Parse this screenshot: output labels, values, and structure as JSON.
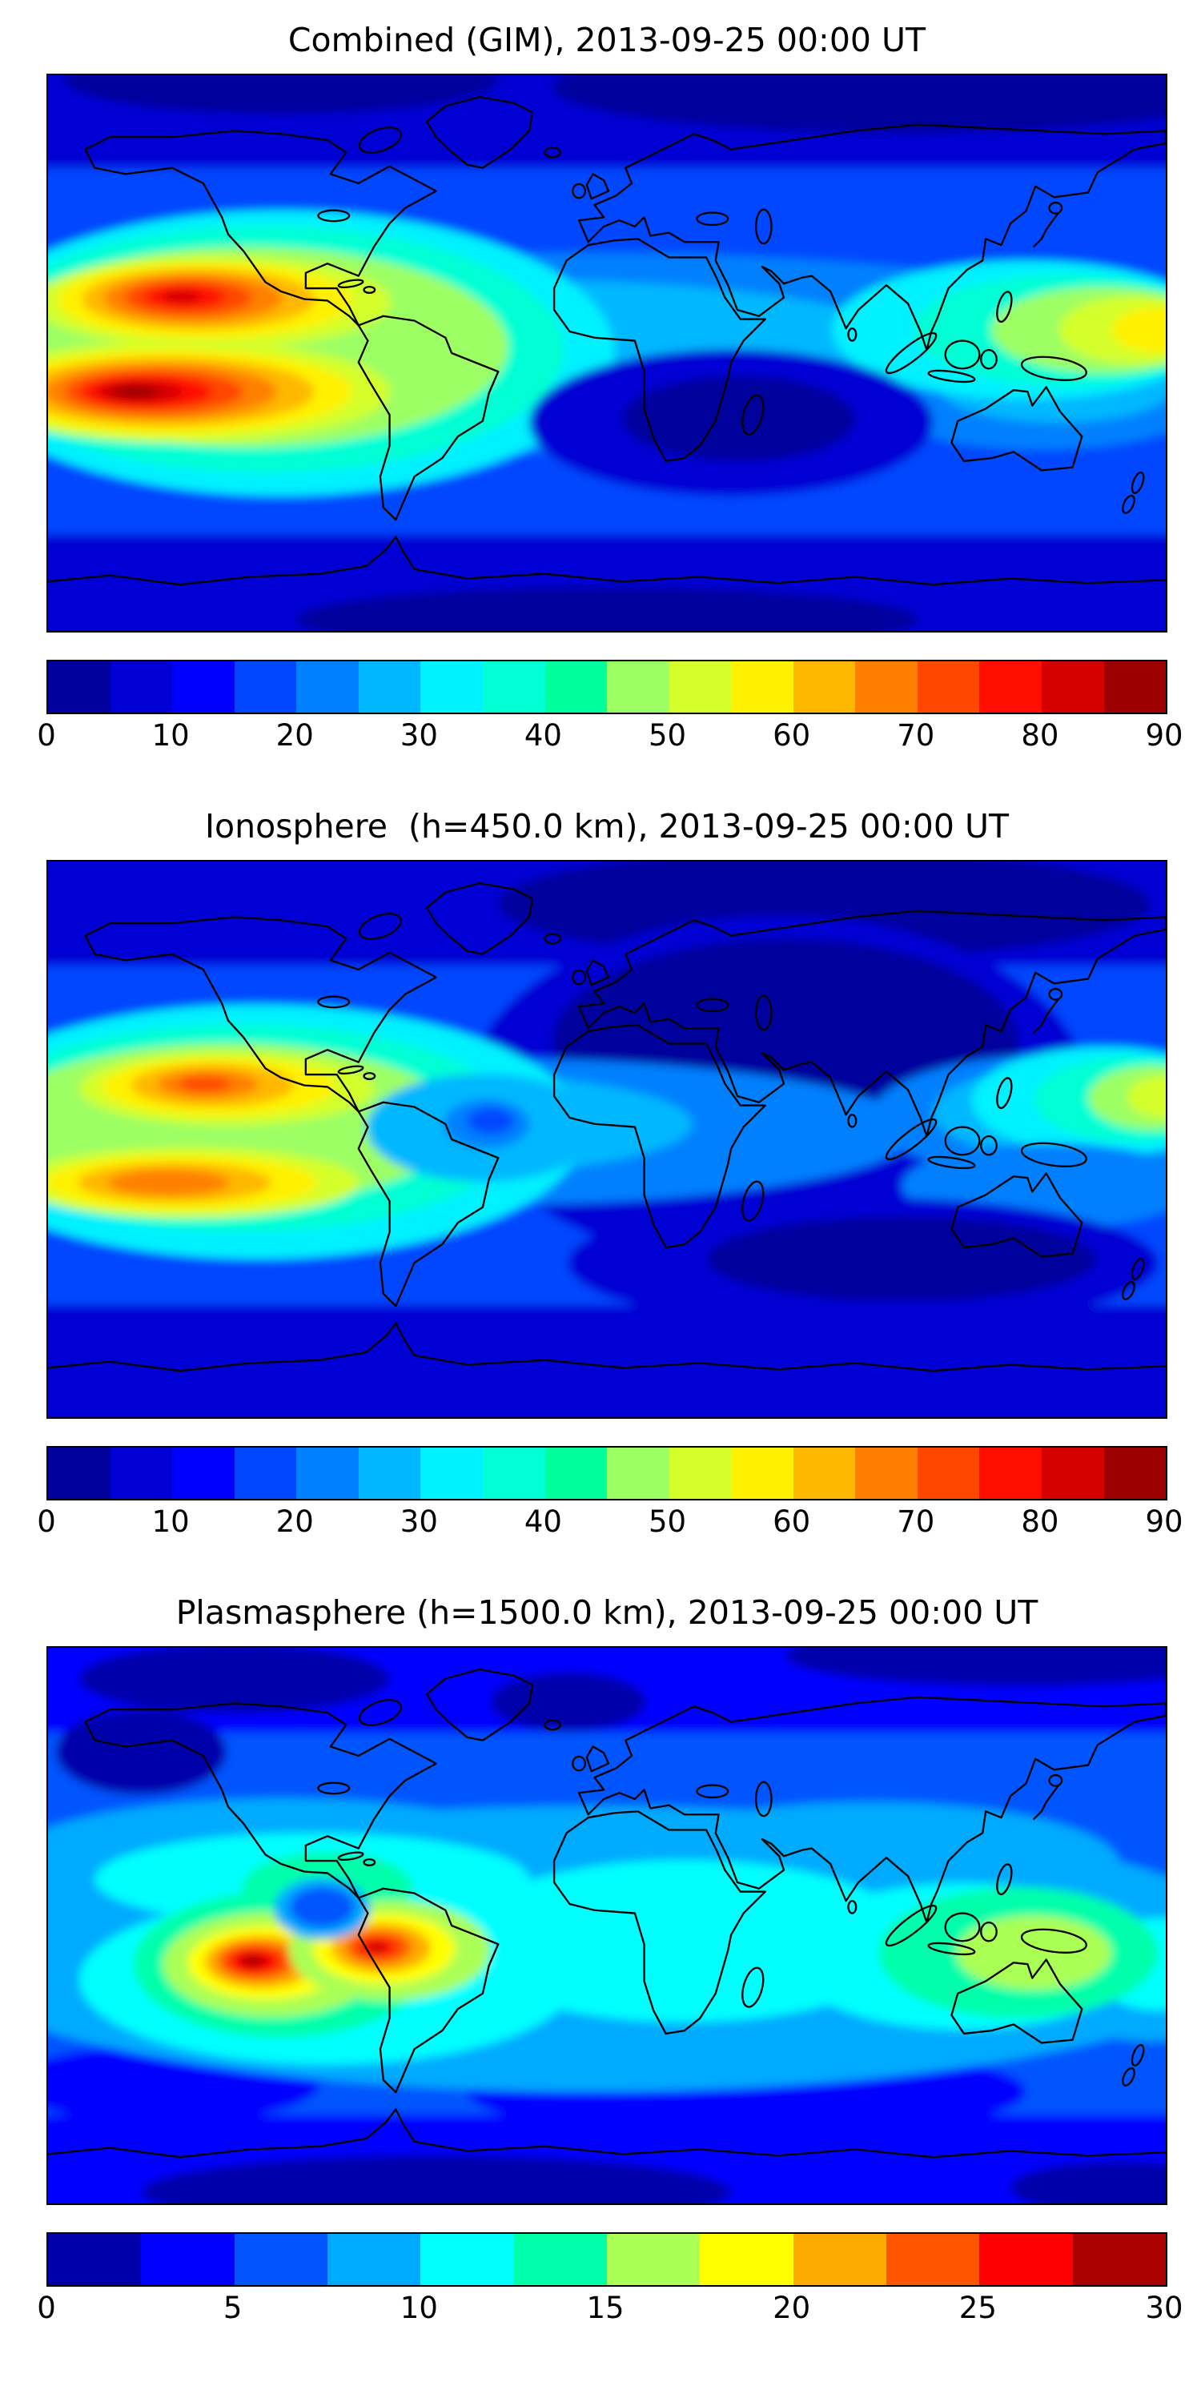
{
  "figure": {
    "background_color": "#ffffff",
    "text_color": "#000000",
    "colormap_name": "jet"
  },
  "panels": [
    {
      "id": "combined",
      "title": "Combined (GIM), 2013-09-25 00:00 UT"
    },
    {
      "id": "ionosphere",
      "title": "Ionosphere  (h=450.0 km), 2013-09-25 00:00 UT"
    },
    {
      "id": "plasmasphere",
      "title": "Plasmasphere (h=1500.0 km), 2013-09-25 00:00 UT"
    }
  ],
  "colorbars": {
    "combined": {
      "min": 0,
      "max": 90,
      "ticks": [
        "0",
        "10",
        "20",
        "30",
        "40",
        "50",
        "60",
        "70",
        "80",
        "90"
      ],
      "colors": [
        "#00009C",
        "#0000D4",
        "#0000FF",
        "#0047FF",
        "#0080FF",
        "#00B8FF",
        "#00F1FF",
        "#00FFD4",
        "#00FF9C",
        "#9CFF63",
        "#D4FF2B",
        "#FFF100",
        "#FFB800",
        "#FF8000",
        "#FF4700",
        "#FF0E00",
        "#D40000",
        "#9C0000"
      ]
    },
    "ionosphere": {
      "min": 0,
      "max": 90,
      "ticks": [
        "0",
        "10",
        "20",
        "30",
        "40",
        "50",
        "60",
        "70",
        "80",
        "90"
      ],
      "colors": [
        "#00009C",
        "#0000D4",
        "#0000FF",
        "#0047FF",
        "#0080FF",
        "#00B8FF",
        "#00F1FF",
        "#00FFD4",
        "#00FF9C",
        "#9CFF63",
        "#D4FF2B",
        "#FFF100",
        "#FFB800",
        "#FF8000",
        "#FF4700",
        "#FF0E00",
        "#D40000",
        "#9C0000"
      ]
    },
    "plasmasphere": {
      "min": 0,
      "max": 30,
      "ticks": [
        "0",
        "5",
        "10",
        "15",
        "20",
        "25",
        "30"
      ],
      "colors": [
        "#0000AA",
        "#0000FF",
        "#0055FF",
        "#00AAFF",
        "#00FFFF",
        "#00FFAA",
        "#AAFF55",
        "#FFFF00",
        "#FFAA00",
        "#FF5500",
        "#FF0000",
        "#AA0000"
      ]
    }
  },
  "chart_data": [
    {
      "type": "heatmap",
      "title": "Combined (GIM), 2013-09-25 00:00 UT",
      "projection": "equirectangular world map, lon -180..180, lat -90..90",
      "colorbar": {
        "range": [
          0,
          90
        ],
        "ticks": [
          0,
          10,
          20,
          30,
          40,
          50,
          60,
          70,
          80,
          90
        ],
        "levels": 18,
        "colormap": "jet",
        "position": "bottom"
      },
      "features": [
        {
          "label": "equatorial-anomaly south crest, central Pacific",
          "lon": -150,
          "lat": -12,
          "peak_value": 90
        },
        {
          "label": "equatorial-anomaly north crest, central Pacific",
          "lon": -137,
          "lat": 16,
          "peak_value": 82
        },
        {
          "label": "enhanced band, SE Asia / western Pacific",
          "lon": 168,
          "lat": 8,
          "peak_value": 62
        },
        {
          "label": "cyan equatorial band across Atlantic/Africa",
          "value_range": [
            30,
            40
          ]
        },
        {
          "label": "minimum, South Atlantic / Indian Ocean",
          "lon": 40,
          "lat": -22,
          "value": 5
        },
        {
          "label": "high-latitude background",
          "value_range": [
            5,
            20
          ]
        }
      ]
    },
    {
      "type": "heatmap",
      "title": "Ionosphere  (h=450.0 km), 2013-09-25 00:00 UT",
      "projection": "equirectangular world map, lon -180..180, lat -90..90",
      "colorbar": {
        "range": [
          0,
          90
        ],
        "ticks": [
          0,
          10,
          20,
          30,
          40,
          50,
          60,
          70,
          80,
          90
        ],
        "levels": 18,
        "colormap": "jet",
        "position": "bottom"
      },
      "features": [
        {
          "label": "equatorial-anomaly north crest, central Pacific",
          "lon": -122,
          "lat": 17,
          "peak_value": 75
        },
        {
          "label": "equatorial-anomaly south crest, central Pacific",
          "lon": -135,
          "lat": -14,
          "peak_value": 70
        },
        {
          "label": "enhancement, far western Pacific (map right edge)",
          "lon": 175,
          "lat": 13,
          "peak_value": 55
        },
        {
          "label": "local dip over eastern South America",
          "lon": -39,
          "lat": 6,
          "value": 20
        },
        {
          "label": "broad minimum over Europe/Africa/central Asia",
          "value": 5
        },
        {
          "label": "minimum, southern Indian Ocean",
          "lon": 95,
          "lat": -40,
          "value": 5
        }
      ]
    },
    {
      "type": "heatmap",
      "title": "Plasmasphere (h=1500.0 km), 2013-09-25 00:00 UT",
      "projection": "equirectangular world map, lon -180..180, lat -90..90",
      "colorbar": {
        "range": [
          0,
          30
        ],
        "ticks": [
          0,
          5,
          10,
          15,
          20,
          25,
          30
        ],
        "levels": 12,
        "colormap": "jet",
        "position": "bottom"
      },
      "features": [
        {
          "label": "peak, south-central Pacific",
          "lon": -110,
          "lat": -12,
          "peak_value": 29
        },
        {
          "label": "secondary peak near western South America",
          "lon": -72,
          "lat": -7,
          "peak_value": 26
        },
        {
          "label": "blue dip between Pacific peaks",
          "lon": -92,
          "lat": 6,
          "value": 7
        },
        {
          "label": "green enhancement, Indonesia / northern Australia",
          "lon": 132,
          "lat": -9,
          "peak_value": 17
        },
        {
          "label": "broad cyan low-latitude band",
          "value_range": [
            10,
            15
          ]
        },
        {
          "label": "polar / high-latitude minima",
          "value_range": [
            2,
            5
          ]
        }
      ]
    }
  ]
}
